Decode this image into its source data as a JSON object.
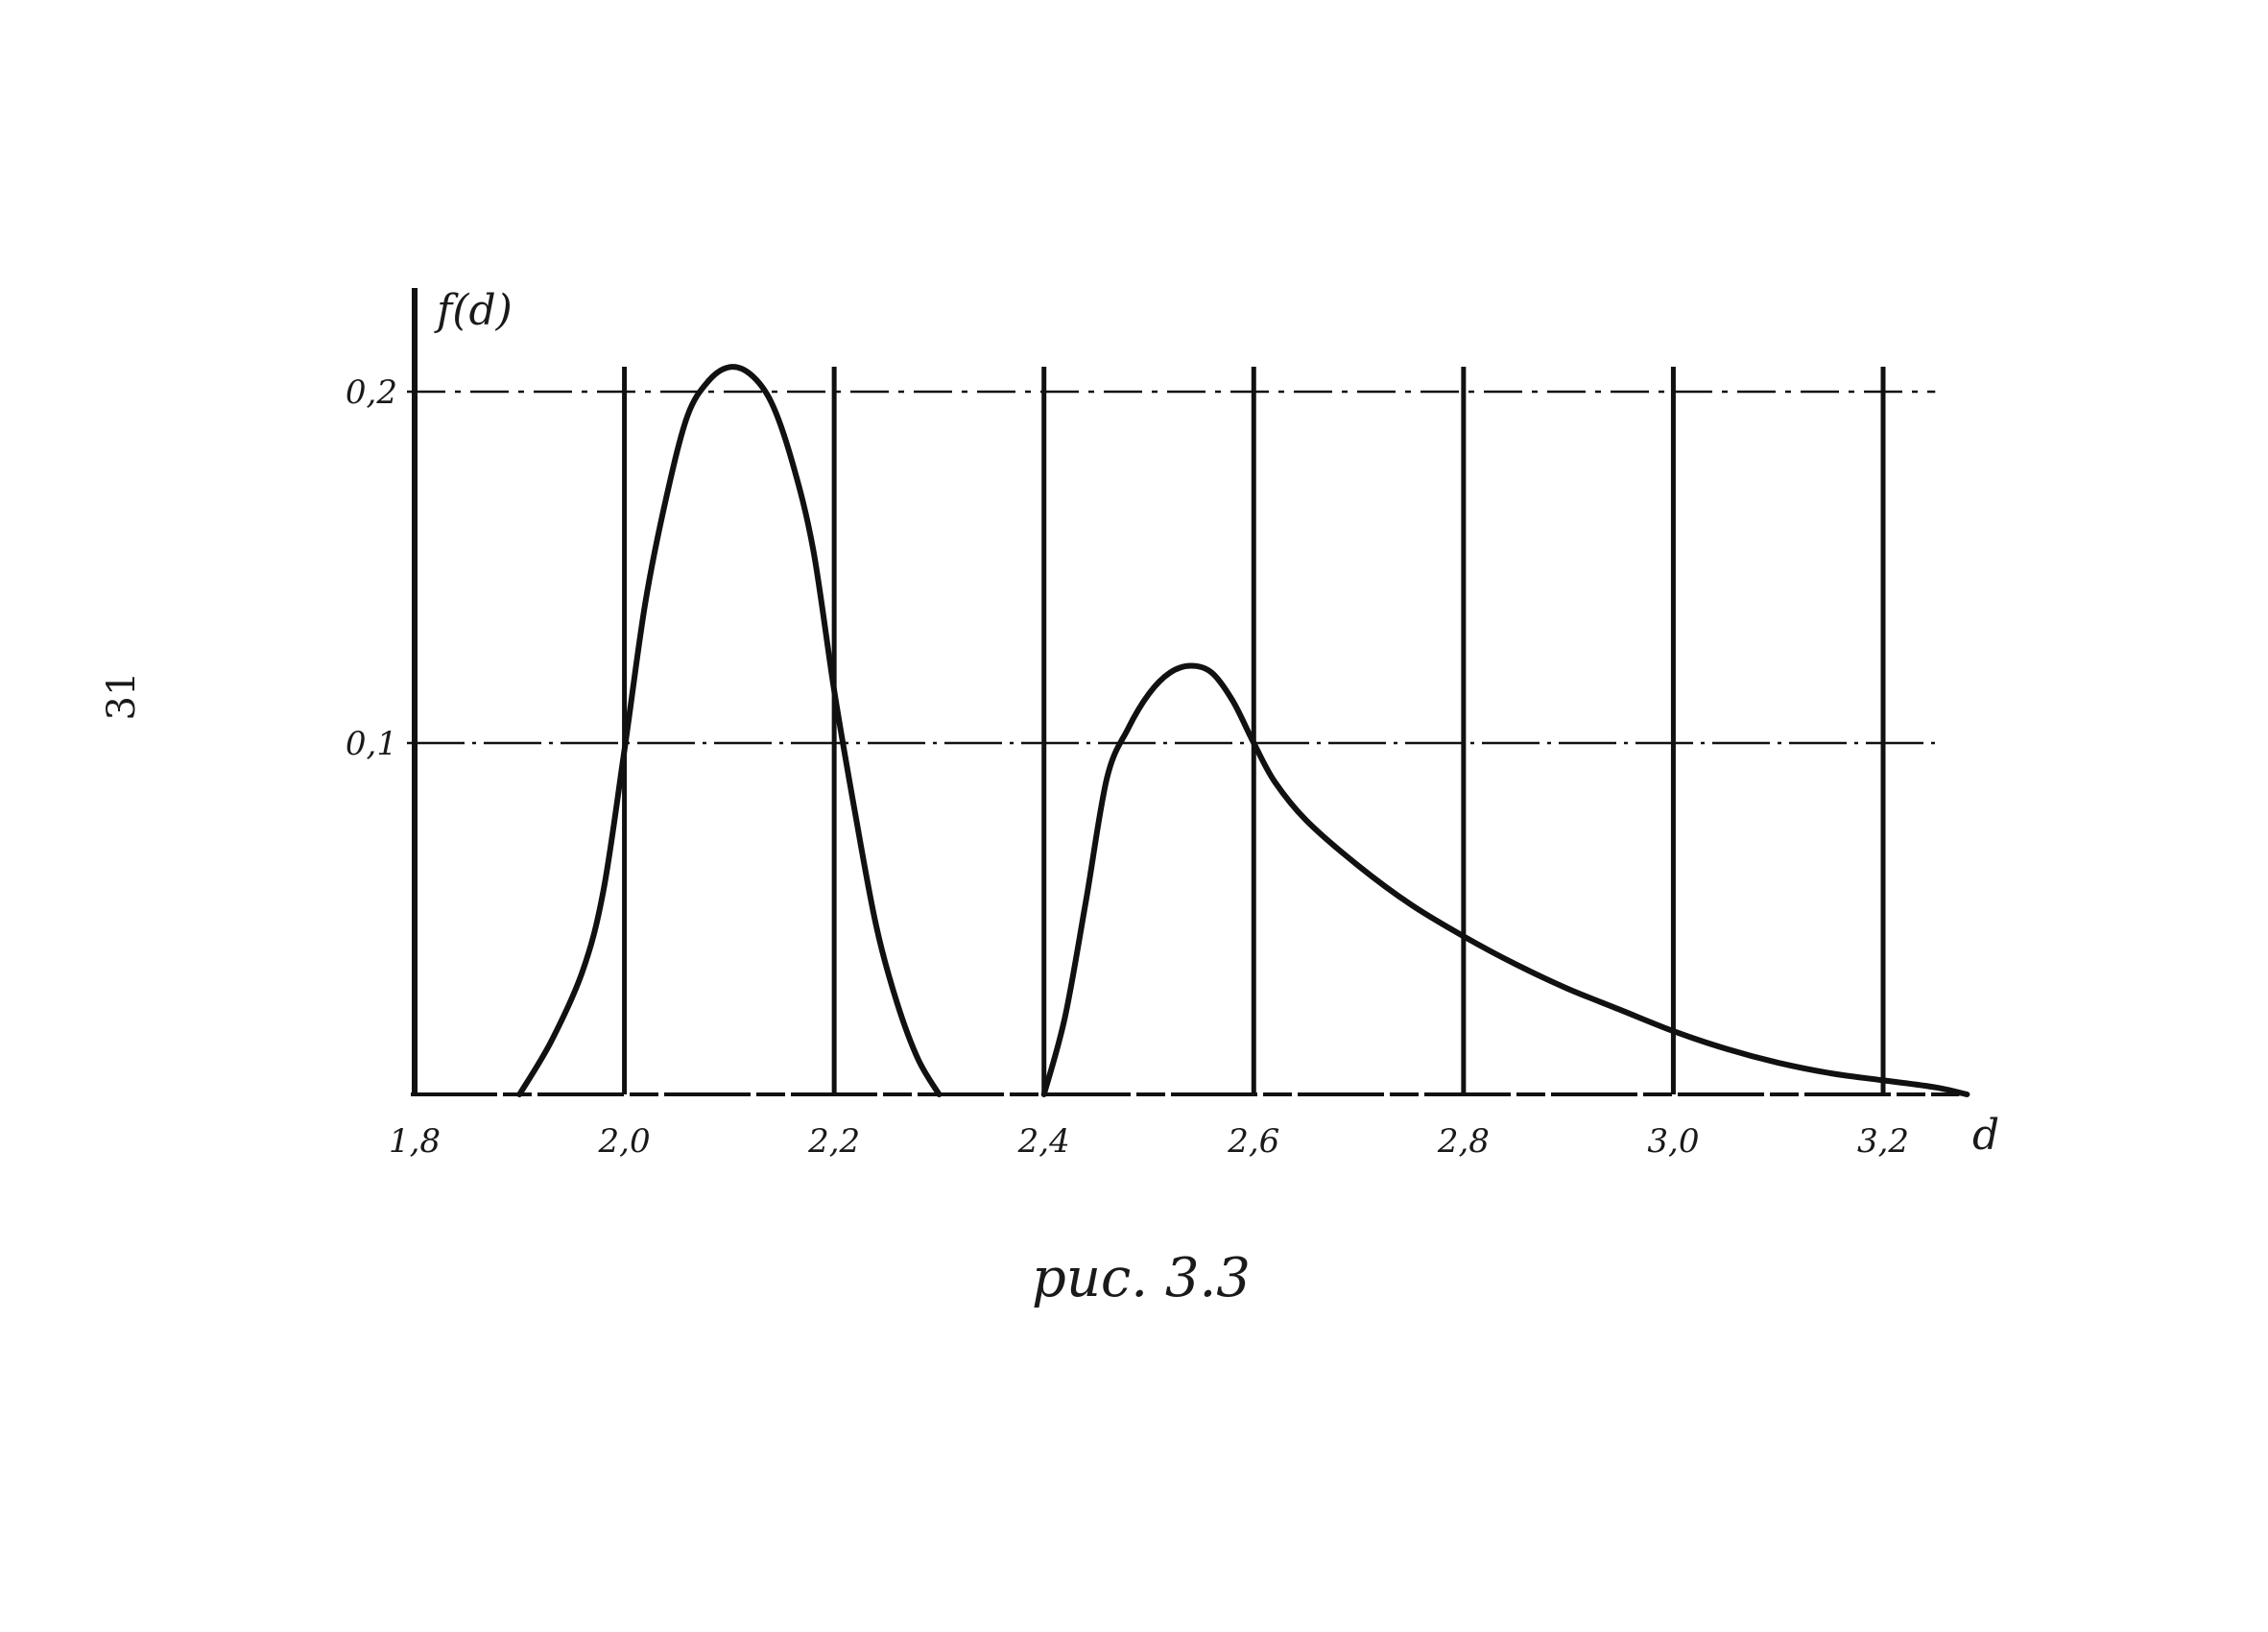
{
  "page_number": "31",
  "caption": "рис. 3.3",
  "chart_data": {
    "type": "line",
    "xlabel": "d",
    "ylabel": "f(d)",
    "xlim": [
      1.8,
      3.3
    ],
    "ylim": [
      0,
      0.21
    ],
    "x_ticks": [
      1.8,
      2.0,
      2.2,
      2.4,
      2.6,
      2.8,
      3.0,
      3.2
    ],
    "x_tick_labels": [
      "1,8",
      "2,0",
      "2,2",
      "2,4",
      "2,6",
      "2,8",
      "3,0",
      "3,2"
    ],
    "y_ticks": [
      0.1,
      0.2
    ],
    "y_tick_labels": [
      "0,1",
      "0,2"
    ],
    "grid": true,
    "series": [
      {
        "x": [
          1.9,
          1.93,
          1.96,
          1.98,
          2.0,
          2.02,
          2.04,
          2.06,
          2.08,
          2.1,
          2.12,
          2.14,
          2.16,
          2.18,
          2.2,
          2.22,
          2.24,
          2.26,
          2.28,
          2.3
        ],
        "y": [
          0.0,
          0.015,
          0.035,
          0.058,
          0.098,
          0.14,
          0.17,
          0.193,
          0.203,
          0.207,
          0.205,
          0.197,
          0.18,
          0.155,
          0.115,
          0.08,
          0.048,
          0.026,
          0.01,
          0.0
        ]
      },
      {
        "x": [
          2.4,
          2.42,
          2.44,
          2.46,
          2.48,
          2.5,
          2.52,
          2.54,
          2.56,
          2.58,
          2.6,
          2.62,
          2.65,
          2.7,
          2.75,
          2.8,
          2.85,
          2.9,
          2.95,
          3.0,
          3.05,
          3.1,
          3.15,
          3.2,
          3.25,
          3.28
        ],
        "y": [
          0.0,
          0.022,
          0.055,
          0.09,
          0.104,
          0.114,
          0.12,
          0.122,
          0.12,
          0.112,
          0.1,
          0.089,
          0.078,
          0.065,
          0.054,
          0.045,
          0.037,
          0.03,
          0.024,
          0.018,
          0.013,
          0.009,
          0.006,
          0.004,
          0.002,
          0.0
        ]
      }
    ]
  }
}
